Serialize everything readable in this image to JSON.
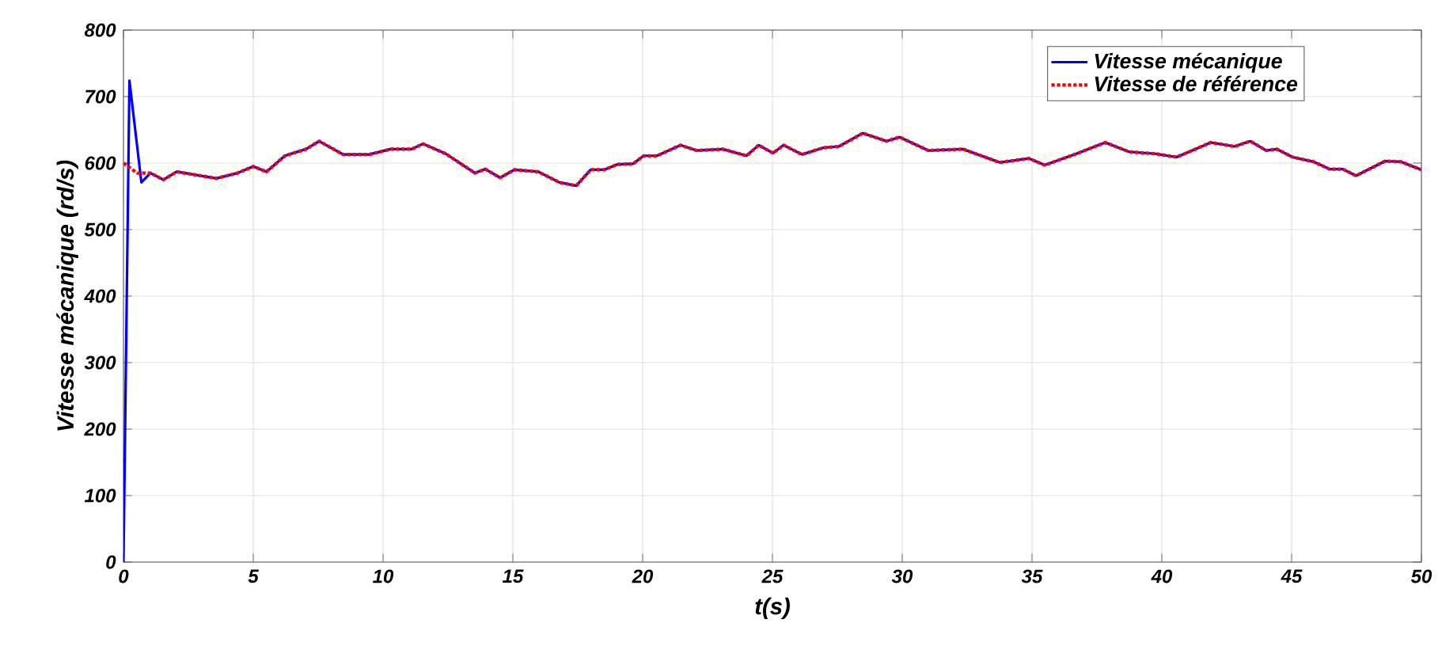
{
  "chart_data": {
    "type": "line",
    "xlabel": "t(s)",
    "ylabel": "Vitesse mécanique (rd/s)",
    "xlim": [
      0,
      50
    ],
    "ylim": [
      0,
      800
    ],
    "xticks": [
      0,
      5,
      10,
      15,
      20,
      25,
      30,
      35,
      40,
      45,
      50
    ],
    "yticks": [
      0,
      100,
      200,
      300,
      400,
      500,
      600,
      700,
      800
    ],
    "grid": true,
    "legend": "top right",
    "series": [
      {
        "name": "Vitesse mécanique",
        "color": "#0000ff",
        "line_style": "solid",
        "x": [
          0,
          0.23,
          0.69,
          1.04,
          1.54,
          2.05,
          3.58,
          4.39,
          5.0,
          5.51,
          6.22,
          7.03,
          7.54,
          8.46,
          9.47,
          10.29,
          11.1,
          11.54,
          12.42,
          13.54,
          13.94,
          14.51,
          15.06,
          15.98,
          16.79,
          17.44,
          18.0,
          18.52,
          19.02,
          19.63,
          20.04,
          20.55,
          21.46,
          22.07,
          23.09,
          24.0,
          24.47,
          25.02,
          25.43,
          26.14,
          26.95,
          27.56,
          28.48,
          29.39,
          29.9,
          31.0,
          32.34,
          33.76,
          34.88,
          35.49,
          36.71,
          37.82,
          38.74,
          39.76,
          40.57,
          41.89,
          42.8,
          43.41,
          44.02,
          44.43,
          45.04,
          45.85,
          46.46,
          46.97,
          47.48,
          48.6,
          49.21,
          50
        ],
        "values": [
          0,
          724,
          571,
          585,
          575,
          587,
          577,
          585,
          595,
          587,
          611,
          621,
          633,
          613,
          613,
          621,
          621,
          629,
          614,
          585,
          591,
          578,
          590,
          587,
          571,
          566,
          590,
          590,
          598,
          599,
          611,
          611,
          627,
          619,
          621,
          611,
          627,
          615,
          627,
          613,
          623,
          625,
          645,
          633,
          639,
          619,
          621,
          601,
          607,
          597,
          614,
          631,
          617,
          614,
          609,
          631,
          625,
          633,
          619,
          621,
          609,
          602,
          591,
          591,
          581,
          603,
          602,
          590
        ]
      },
      {
        "name": "Vitesse de référence",
        "color": "#ff0000",
        "line_style": "dotted",
        "x": [
          0,
          0.53,
          1.04,
          1.54,
          2.05,
          3.58,
          4.39,
          5.0,
          5.51,
          6.22,
          7.03,
          7.54,
          8.46,
          9.47,
          10.29,
          11.1,
          11.54,
          12.42,
          13.54,
          13.94,
          14.51,
          15.06,
          15.98,
          16.79,
          17.44,
          18.0,
          18.52,
          19.02,
          19.63,
          20.04,
          20.55,
          21.46,
          22.07,
          23.09,
          24.0,
          24.47,
          25.02,
          25.43,
          26.14,
          26.95,
          27.56,
          28.48,
          29.39,
          29.9,
          31.0,
          32.34,
          33.76,
          34.88,
          35.49,
          36.71,
          37.82,
          38.74,
          39.76,
          40.57,
          41.89,
          42.8,
          43.41,
          44.02,
          44.43,
          45.04,
          45.85,
          46.46,
          46.97,
          47.48,
          48.6,
          49.21,
          50
        ],
        "values": [
          600,
          585,
          585,
          575,
          587,
          577,
          585,
          595,
          587,
          611,
          621,
          633,
          613,
          613,
          621,
          621,
          629,
          614,
          585,
          591,
          578,
          590,
          587,
          571,
          566,
          590,
          590,
          598,
          599,
          611,
          611,
          627,
          619,
          621,
          611,
          627,
          615,
          627,
          613,
          623,
          625,
          645,
          633,
          639,
          619,
          621,
          601,
          607,
          597,
          614,
          631,
          617,
          614,
          609,
          631,
          625,
          633,
          619,
          621,
          609,
          602,
          591,
          591,
          581,
          603,
          602,
          590
        ]
      }
    ]
  }
}
